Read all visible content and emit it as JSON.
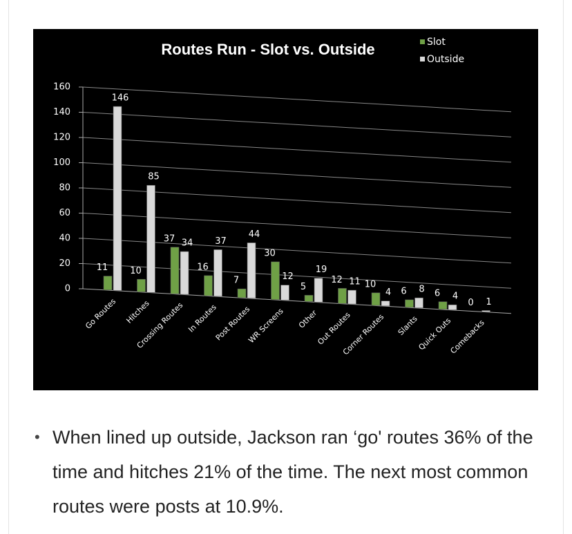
{
  "chart_data": {
    "type": "bar",
    "title": "Routes Run - Slot vs. Outside",
    "categories": [
      "Go Routes",
      "Hitches",
      "Crossing Routes",
      "In Routes",
      "Post Routes",
      "WR Screens",
      "Other",
      "Out Routes",
      "Corner Routes",
      "Slants",
      "Quick Outs",
      "Comebacks"
    ],
    "series": [
      {
        "name": "Slot",
        "color": "#6fa046",
        "values": [
          11,
          10,
          37,
          16,
          7,
          30,
          5,
          12,
          10,
          6,
          6,
          0
        ]
      },
      {
        "name": "Outside",
        "color": "#d9d9d9",
        "values": [
          146,
          85,
          34,
          37,
          44,
          12,
          19,
          11,
          4,
          8,
          4,
          1
        ]
      }
    ],
    "ylim": [
      0,
      160
    ],
    "yticks": [
      0,
      20,
      40,
      60,
      80,
      100,
      120,
      140,
      160
    ],
    "grid": true
  },
  "text": {
    "paragraph": "When lined up outside, Jackson ran ‘go' routes 36% of the time and hitches 21% of the time. The next most common routes were posts at 10.9%."
  }
}
